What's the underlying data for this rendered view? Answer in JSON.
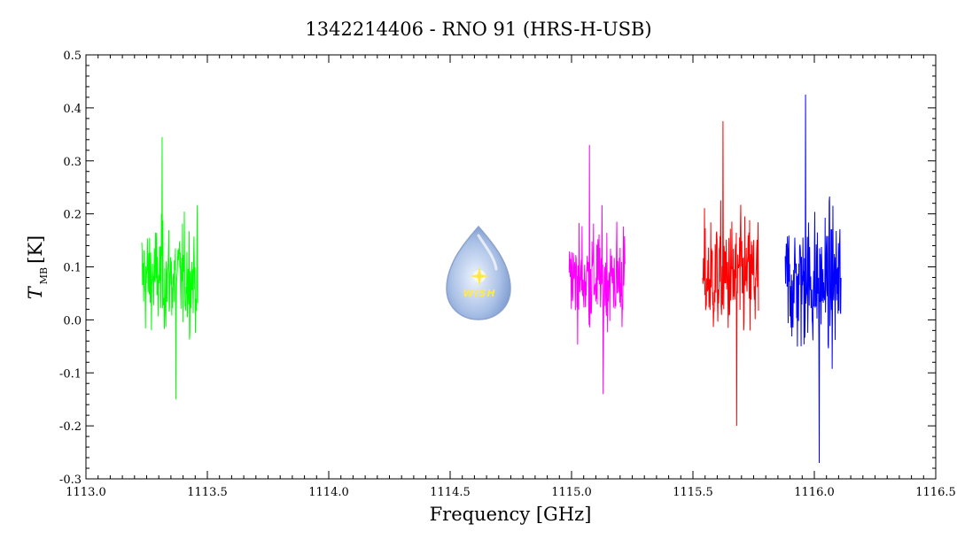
{
  "chart_data": {
    "type": "line",
    "title": "1342214406 - RNO 91 (HRS-H-USB)",
    "xlabel": "Frequency [GHz]",
    "ylabel_main": "T",
    "ylabel_sub": "MB",
    "ylabel_unit": "[K]",
    "xlim": [
      1113.0,
      1116.5
    ],
    "ylim": [
      -0.3,
      0.5
    ],
    "x_ticks": [
      "1113.0",
      "1113.5",
      "1114.0",
      "1114.5",
      "1115.0",
      "1115.5",
      "1116.0",
      "1116.5"
    ],
    "y_ticks": [
      "-0.3",
      "-0.2",
      "-0.1",
      "0.0",
      "0.1",
      "0.2",
      "0.3",
      "0.4",
      "0.5"
    ],
    "grid": false,
    "series": [
      {
        "color": "#00ff00",
        "x_range": [
          1113.23,
          1113.46
        ],
        "center": 0.08,
        "noise": 0.07,
        "min": -0.15,
        "max": 0.345
      },
      {
        "color": "#ff00ff",
        "x_range": [
          1114.99,
          1115.22
        ],
        "center": 0.08,
        "noise": 0.07,
        "min": -0.14,
        "max": 0.33
      },
      {
        "color": "#ff0000",
        "x_range": [
          1115.54,
          1115.77
        ],
        "center": 0.08,
        "noise": 0.08,
        "min": -0.2,
        "max": 0.375
      },
      {
        "color": "#0000ff",
        "x_range": [
          1115.88,
          1116.11
        ],
        "center": 0.07,
        "noise": 0.09,
        "min": -0.27,
        "max": 0.425
      }
    ]
  },
  "logo": {
    "text": "WISH"
  }
}
